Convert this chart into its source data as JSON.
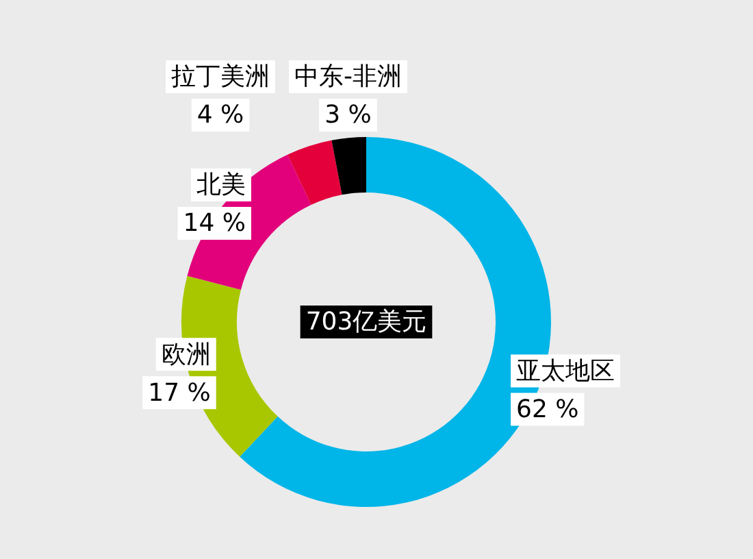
{
  "chart_data": {
    "type": "donut",
    "categories": [
      "亚太地区",
      "欧洲",
      "北美",
      "拉丁美洲",
      "中东-非洲"
    ],
    "values": [
      62,
      17,
      14,
      4,
      3
    ],
    "value_labels": [
      "62 %",
      "17 %",
      "14 %",
      "4 %",
      "3 %"
    ],
    "colors": [
      "#00b5e8",
      "#a9c700",
      "#e2007b",
      "#e3003b",
      "#000000"
    ],
    "annotations": [
      "703亿美元"
    ],
    "legend": false
  }
}
